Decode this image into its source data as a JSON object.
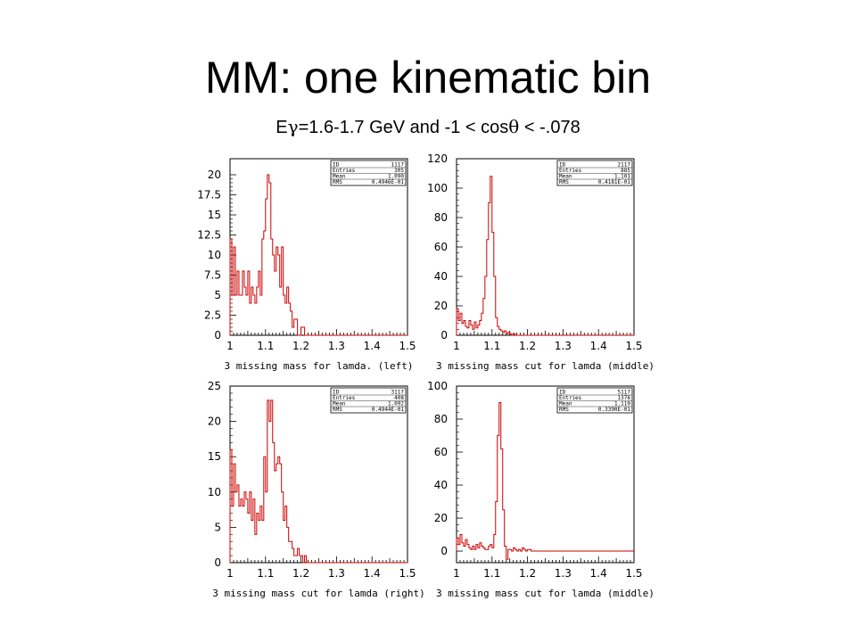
{
  "slide": {
    "title": "MM: one kinematic bin",
    "subtitle_prefix": "E",
    "subtitle_gamma": "γ",
    "subtitle_mid": "=1.6-1.7 GeV and -1 < cos",
    "subtitle_theta": "θ",
    "subtitle_suffix": " < -.078"
  },
  "chart_data": [
    {
      "type": "histogram",
      "xlabel": "3 missing mass for lamda. (left)",
      "xlim": [
        1,
        1.5
      ],
      "ylim": [
        0,
        22
      ],
      "xticks": [
        "1",
        "1.1",
        "1.2",
        "1.3",
        "1.4",
        "1.5"
      ],
      "yticks": [
        0,
        2.5,
        5,
        7.5,
        10,
        12.5,
        15,
        17.5,
        20
      ],
      "ytick_labels": [
        "0",
        "2.5",
        "5",
        "7.5",
        "10",
        "12.5",
        "15",
        "17.5",
        "20"
      ],
      "stats": [
        [
          "ID",
          "1117"
        ],
        [
          "Entries",
          "305"
        ],
        [
          "Mean",
          "1.090"
        ],
        [
          "RMS",
          "0.4946E-01"
        ]
      ],
      "bin_start": 1.0,
      "bin_width": 0.005,
      "values": [
        12,
        5,
        11,
        5,
        8,
        5,
        5,
        8,
        6,
        5,
        8,
        4,
        6,
        5,
        4,
        6,
        8,
        5,
        12,
        13,
        17,
        20,
        19,
        12,
        10,
        8,
        11,
        10,
        6,
        11,
        5,
        4,
        6,
        4,
        3,
        1,
        2,
        2,
        0,
        0,
        1,
        1,
        0,
        0,
        0,
        0,
        0,
        0,
        0,
        0,
        0,
        0,
        0,
        0,
        0,
        0,
        0,
        0,
        0,
        0,
        0,
        0,
        0,
        0,
        0,
        0,
        0,
        0,
        0,
        0,
        0,
        0,
        0,
        0,
        0,
        0,
        0,
        0,
        0,
        0,
        0,
        0,
        0,
        0,
        0,
        0,
        0,
        0,
        0,
        0,
        0,
        0,
        0,
        0,
        0,
        0,
        0,
        0,
        0,
        0
      ]
    },
    {
      "type": "histogram",
      "xlabel": "3 missing mass cut for lamda (middle)",
      "xlim": [
        1,
        1.5
      ],
      "ylim": [
        0,
        120
      ],
      "xticks": [
        "1",
        "1.1",
        "1.2",
        "1.3",
        "1.4",
        "1.5"
      ],
      "yticks": [
        0,
        20,
        40,
        60,
        80,
        100,
        120
      ],
      "ytick_labels": [
        "0",
        "20",
        "40",
        "60",
        "80",
        "100",
        "120"
      ],
      "stats": [
        [
          "ID",
          "2117"
        ],
        [
          "Entries",
          "885"
        ],
        [
          "Mean",
          "1.101"
        ],
        [
          "RMS",
          "0.4181E-01"
        ]
      ],
      "bin_start": 1.0,
      "bin_width": 0.005,
      "values": [
        18,
        10,
        15,
        8,
        10,
        6,
        5,
        10,
        7,
        4,
        9,
        5,
        7,
        10,
        15,
        25,
        40,
        65,
        90,
        108,
        70,
        40,
        12,
        6,
        4,
        3,
        2,
        3,
        1,
        2,
        1,
        0,
        1,
        0,
        0,
        0,
        0,
        0,
        0,
        0,
        0,
        0,
        0,
        0,
        0,
        0,
        0,
        0,
        0,
        0,
        0,
        0,
        0,
        0,
        0,
        0,
        0,
        0,
        0,
        0,
        0,
        0,
        0,
        0,
        0,
        0,
        0,
        0,
        0,
        0,
        0,
        0,
        0,
        0,
        0,
        0,
        0,
        0,
        0,
        0,
        0,
        0,
        0,
        0,
        0,
        0,
        0,
        0,
        0,
        0,
        0,
        0,
        0,
        0,
        0,
        0,
        0,
        0,
        0,
        0
      ]
    },
    {
      "type": "histogram",
      "xlabel": "3 missing mass cut for lamda (right)",
      "xlim": [
        1,
        1.5
      ],
      "ylim": [
        0,
        25
      ],
      "xticks": [
        "1",
        "1.1",
        "1.2",
        "1.3",
        "1.4",
        "1.5"
      ],
      "yticks": [
        0,
        5,
        10,
        15,
        20,
        25
      ],
      "ytick_labels": [
        "0",
        "5",
        "10",
        "15",
        "20",
        "25"
      ],
      "stats": [
        [
          "ID",
          "3117"
        ],
        [
          "Entries",
          "408"
        ],
        [
          "Mean",
          "1.092"
        ],
        [
          "RMS",
          "0.4944E-01"
        ]
      ],
      "bin_start": 1.0,
      "bin_width": 0.005,
      "values": [
        16,
        8,
        14,
        10,
        11,
        8,
        9,
        8,
        10,
        9,
        7,
        10,
        6,
        9,
        4,
        7,
        6,
        8,
        6,
        15,
        10,
        23,
        20,
        23,
        17,
        13,
        14,
        15,
        14,
        10,
        6,
        8,
        5,
        3,
        3,
        2,
        1,
        1,
        2,
        1,
        1,
        0,
        1,
        0,
        0,
        0,
        0,
        0,
        0,
        0,
        0,
        0,
        0,
        0,
        0,
        0,
        0,
        0,
        0,
        0,
        0,
        0,
        0,
        0,
        0,
        0,
        0,
        0,
        0,
        0,
        0,
        0,
        0,
        0,
        0,
        0,
        0,
        0,
        0,
        0,
        0,
        0,
        0,
        0,
        0,
        0,
        0,
        0,
        0,
        0,
        0,
        0,
        0,
        0,
        0,
        0,
        0,
        0,
        0,
        0
      ]
    },
    {
      "type": "histogram",
      "xlabel": "3 missing mass cut for lamda (middle)",
      "xlim": [
        1,
        1.5
      ],
      "ylim": [
        -7,
        100
      ],
      "xticks": [
        "1",
        "1.1",
        "1.2",
        "1.3",
        "1.4",
        "1.5"
      ],
      "yticks": [
        0,
        20,
        40,
        60,
        80,
        100
      ],
      "ytick_labels": [
        "0",
        "20",
        "40",
        "60",
        "80",
        "100"
      ],
      "stats": [
        [
          "ID",
          "5117"
        ],
        [
          "Entries",
          "1376"
        ],
        [
          "Mean",
          "1.110"
        ],
        [
          "RMS",
          "0.3390E-01"
        ]
      ],
      "bin_start": 1.0,
      "bin_width": 0.005,
      "values": [
        8,
        4,
        10,
        5,
        3,
        7,
        4,
        2,
        1,
        3,
        1,
        4,
        2,
        5,
        3,
        2,
        1,
        1,
        3,
        4,
        2,
        10,
        30,
        70,
        90,
        62,
        25,
        3,
        -5,
        1,
        1,
        0,
        2,
        1,
        0,
        1,
        0,
        2,
        1,
        0,
        1,
        1,
        0,
        0,
        0,
        0,
        0,
        0,
        0,
        0,
        0,
        0,
        0,
        0,
        0,
        0,
        0,
        0,
        0,
        0,
        0,
        0,
        0,
        0,
        0,
        0,
        0,
        0,
        0,
        0,
        0,
        0,
        0,
        0,
        0,
        0,
        0,
        0,
        0,
        0,
        0,
        0,
        0,
        0,
        0,
        0,
        0,
        0,
        0,
        0,
        0,
        0,
        0,
        0,
        0,
        0,
        0,
        0,
        0,
        0
      ]
    }
  ]
}
